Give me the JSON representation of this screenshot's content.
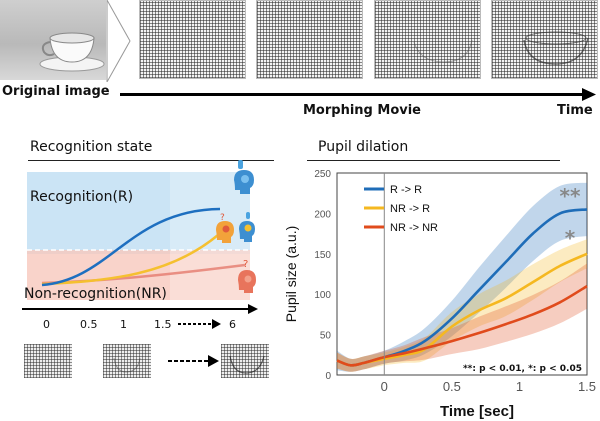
{
  "top": {
    "original_label": "Original image",
    "movie_label": "Morphing Movie",
    "time_label": "Time"
  },
  "recognition": {
    "title": "Recognition state",
    "r_label": "Recognition(R)",
    "nr_label": "Non-recognition(NR)",
    "ticks": [
      "0",
      "0.5",
      "1",
      "1.5",
      "6"
    ],
    "colors": {
      "r": "#1e6fc0",
      "nr_r": "#f5c030",
      "nr_nr": "#e57a6e"
    }
  },
  "pupil": {
    "title": "Pupil dilation",
    "significance_note": "**: p < 0.01, *: p < 0.05",
    "star_r": "**",
    "star_nr_r": "*"
  },
  "chart_data": {
    "type": "line",
    "xlabel": "Time [sec]",
    "ylabel": "Pupil size (a.u.)",
    "xlim": [
      -0.35,
      1.5
    ],
    "ylim": [
      0,
      250
    ],
    "x_ticks": [
      "0",
      "0.5",
      "1",
      "1.5"
    ],
    "y_ticks": [
      "0",
      "50",
      "100",
      "150",
      "200",
      "250"
    ],
    "legend_position": "top-left",
    "series": [
      {
        "name": "R -> R",
        "color": "#1f6db8",
        "x": [
          -0.35,
          -0.25,
          -0.15,
          0,
          0.15,
          0.3,
          0.5,
          0.7,
          0.9,
          1.1,
          1.3,
          1.5
        ],
        "values": [
          18,
          12,
          15,
          22,
          30,
          42,
          70,
          105,
          140,
          175,
          200,
          205
        ],
        "ci": [
          12,
          8,
          8,
          8,
          12,
          16,
          22,
          28,
          32,
          34,
          34,
          33
        ]
      },
      {
        "name": "NR -> R",
        "color": "#f5b820",
        "x": [
          -0.35,
          -0.25,
          -0.15,
          0,
          0.15,
          0.3,
          0.5,
          0.7,
          0.9,
          1.1,
          1.3,
          1.5
        ],
        "values": [
          18,
          12,
          15,
          20,
          25,
          32,
          60,
          80,
          95,
          115,
          135,
          150
        ],
        "ci": [
          10,
          8,
          8,
          8,
          10,
          14,
          18,
          20,
          22,
          22,
          20,
          18
        ]
      },
      {
        "name": "NR -> NR",
        "color": "#e04b1c",
        "x": [
          -0.35,
          -0.25,
          -0.15,
          0,
          0.15,
          0.3,
          0.5,
          0.7,
          0.9,
          1.1,
          1.3,
          1.5
        ],
        "values": [
          18,
          12,
          15,
          22,
          27,
          33,
          42,
          52,
          63,
          75,
          90,
          110
        ],
        "ci": [
          10,
          8,
          8,
          8,
          10,
          14,
          16,
          20,
          22,
          24,
          26,
          28
        ]
      }
    ]
  }
}
